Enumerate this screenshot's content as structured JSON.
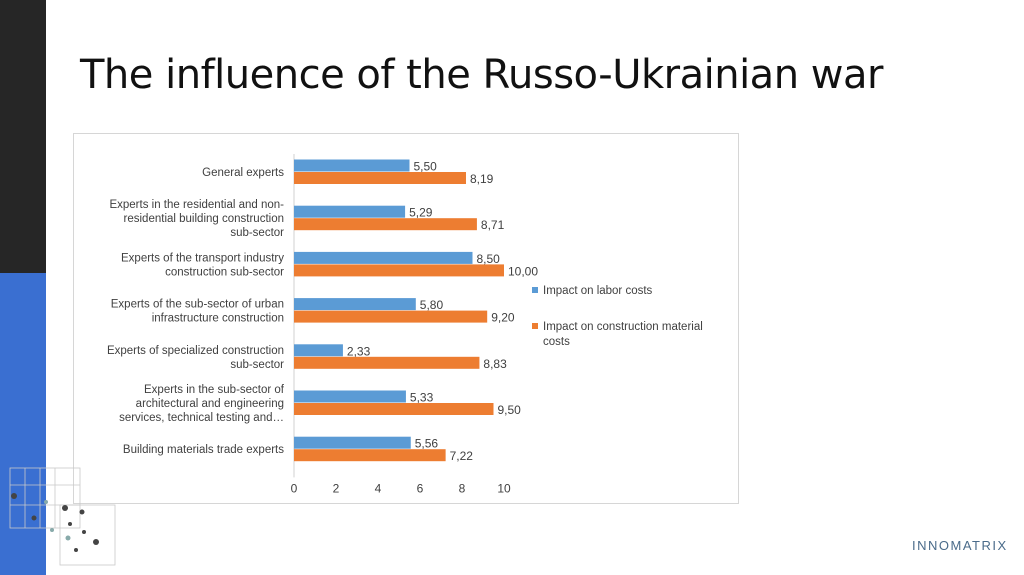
{
  "slide": {
    "title": "The influence of the Russo-Ukrainian war",
    "logo_text": "INNOMATRIX",
    "colors": {
      "sidebar_dark": "#262626",
      "sidebar_blue": "#3a6fd1"
    }
  },
  "chart_data": {
    "type": "bar",
    "orientation": "horizontal",
    "categories": [
      "General experts",
      "Experts in the residential and non-residential building construction sub-sector",
      "Experts of the transport industry construction sub-sector",
      "Experts of the sub-sector of urban infrastructure construction",
      "Experts of specialized construction sub-sector",
      "Experts in the sub-sector of architectural and engineering services, technical testing and…",
      "Building materials trade experts"
    ],
    "category_lines": [
      [
        "General experts"
      ],
      [
        "Experts in the residential and non-",
        "residential building construction",
        "sub-sector"
      ],
      [
        "Experts of the transport industry",
        "construction sub-sector"
      ],
      [
        "Experts of the sub-sector of urban",
        "infrastructure construction"
      ],
      [
        "Experts of specialized construction",
        "sub-sector"
      ],
      [
        "Experts in the sub-sector of",
        "architectural and engineering",
        "services, technical testing and…"
      ],
      [
        "Building materials trade experts"
      ]
    ],
    "series": [
      {
        "name": "Impact on labor costs",
        "color": "#5b9bd5",
        "values": [
          5.5,
          5.29,
          8.5,
          5.8,
          2.33,
          5.33,
          5.56
        ],
        "labels": [
          "5,50",
          "5,29",
          "8,50",
          "5,80",
          "2,33",
          "5,33",
          "5,56"
        ]
      },
      {
        "name": "Impact on construction material costs",
        "color": "#ed7d31",
        "values": [
          8.19,
          8.71,
          10.0,
          9.2,
          8.83,
          9.5,
          7.22
        ],
        "labels": [
          "8,19",
          "8,71",
          "10,00",
          "9,20",
          "8,83",
          "9,50",
          "7,22"
        ]
      }
    ],
    "legend_lines": [
      [
        "Impact on labor costs"
      ],
      [
        "Impact on construction material",
        "costs"
      ]
    ],
    "x_ticks": [
      "0",
      "2",
      "4",
      "6",
      "8",
      "10"
    ],
    "xlim": [
      0,
      10
    ],
    "xlabel": "",
    "ylabel": "",
    "grid": false,
    "legend_position": "right"
  }
}
